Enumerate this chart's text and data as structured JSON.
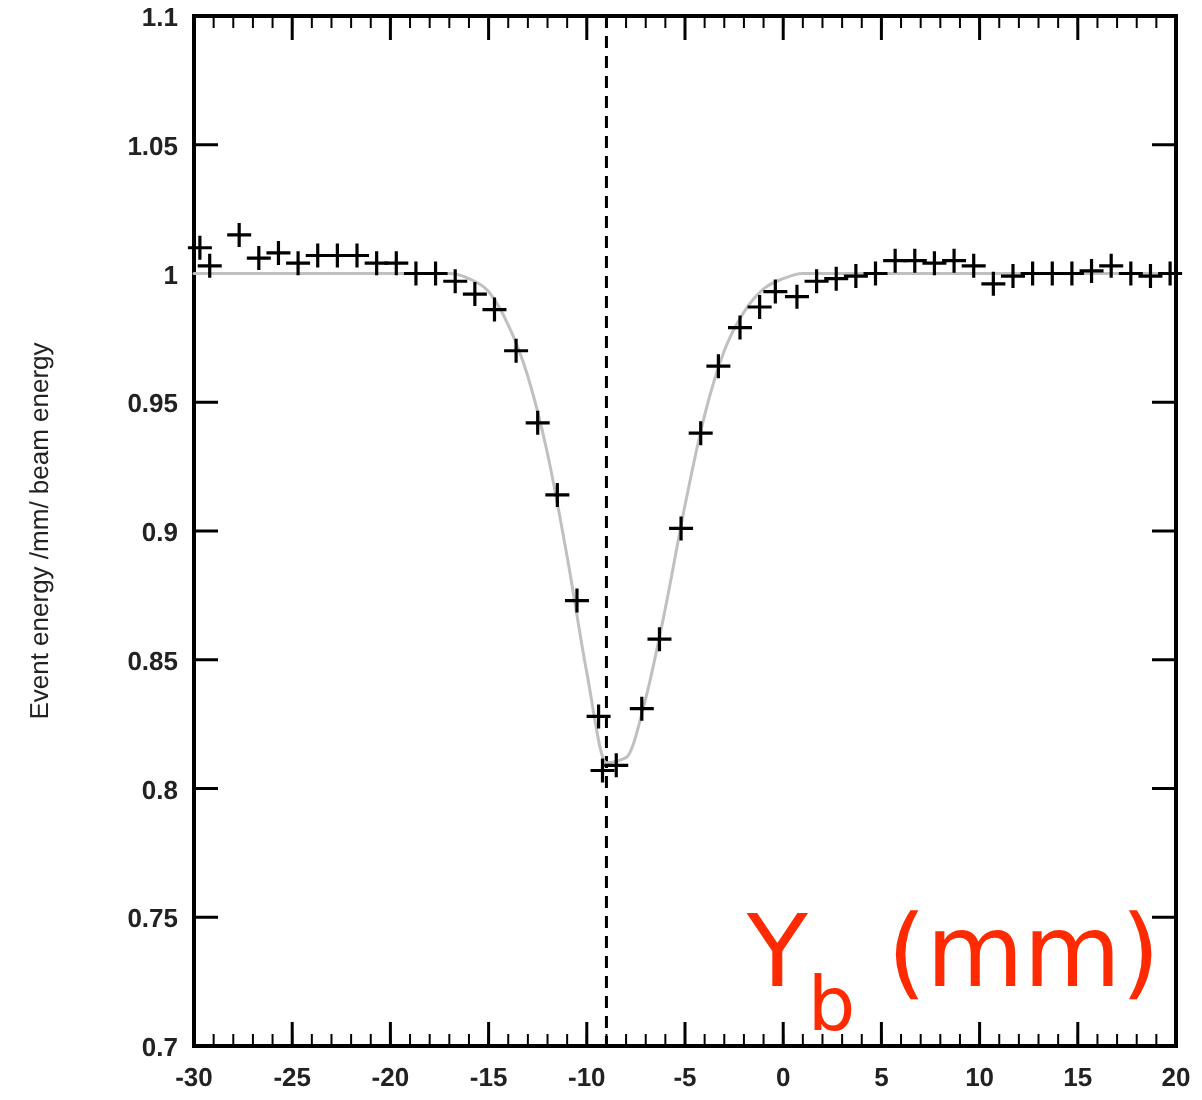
{
  "chart_data": {
    "type": "scatter",
    "xlabel": "Y$_{b}$ (mm)",
    "ylabel": "Event energy /mm/ beam energy",
    "xlim": [
      -30,
      20
    ],
    "ylim": [
      0.7,
      1.1
    ],
    "xticks": [
      -30,
      -25,
      -20,
      -15,
      -10,
      -5,
      0,
      5,
      10,
      15,
      20
    ],
    "yticks": [
      0.7,
      0.75,
      0.8,
      0.85,
      0.9,
      0.95,
      1,
      1.05,
      1.1
    ],
    "marker": "cross",
    "grid": false,
    "ref_lines": [
      {
        "axis": "x",
        "value": -9,
        "color": "#000000",
        "line_style": "dashed"
      }
    ],
    "series": [
      {
        "type": "line",
        "color": "#c0c0c0",
        "line_style": "solid",
        "marker": "none",
        "x": [
          -30,
          -29,
          -28,
          -27,
          -26,
          -25,
          -24,
          -23,
          -22,
          -21,
          -20,
          -19,
          -18,
          -17,
          -16,
          -15,
          -14,
          -13,
          -12,
          -11,
          -10,
          -9,
          -8,
          -7,
          -6,
          -5,
          -4,
          -3,
          -2,
          -1,
          0,
          1,
          2,
          3,
          4,
          5,
          6,
          7,
          8,
          9,
          10,
          11,
          12,
          13,
          14,
          15,
          16,
          17,
          18,
          19,
          20
        ],
        "values": [
          1,
          1,
          1,
          1,
          1,
          1,
          1,
          1,
          1,
          1,
          1,
          1,
          1,
          1,
          0.998,
          0.993,
          0.98,
          0.96,
          0.93,
          0.89,
          0.845,
          0.81,
          0.812,
          0.835,
          0.87,
          0.91,
          0.945,
          0.97,
          0.985,
          0.994,
          0.998,
          1,
          1,
          1,
          1,
          1,
          1,
          1,
          1,
          1,
          1,
          1,
          1,
          1,
          1,
          1,
          1,
          1,
          1,
          1,
          1
        ]
      },
      {
        "color": "#000000",
        "x": [
          -29.7,
          -29.2,
          -27.7,
          -26.7,
          -25.7,
          -24.7,
          -23.7,
          -22.7,
          -21.7,
          -20.7,
          -19.7,
          -18.7,
          -17.7,
          -16.7,
          -15.7,
          -14.7,
          -13.6,
          -12.5,
          -11.5,
          -10.5,
          -9.4,
          -9.2,
          -8.5,
          -7.2,
          -6.3,
          -5.2,
          -4.2,
          -3.3,
          -2.2,
          -1.2,
          -0.4,
          0.7,
          1.7,
          2.7,
          3.7,
          4.7,
          5.7,
          6.7,
          7.7,
          8.7,
          9.7,
          10.7,
          11.7,
          12.7,
          13.7,
          14.7,
          15.7,
          16.7,
          17.7,
          18.7,
          19.7
        ],
        "values": [
          1.01,
          1.003,
          1.015,
          1.006,
          1.008,
          1.004,
          1.007,
          1.007,
          1.007,
          1.004,
          1.004,
          1,
          1,
          0.997,
          0.992,
          0.986,
          0.97,
          0.942,
          0.914,
          0.873,
          0.828,
          0.807,
          0.809,
          0.831,
          0.858,
          0.901,
          0.938,
          0.964,
          0.979,
          0.987,
          0.993,
          0.991,
          0.997,
          0.998,
          0.999,
          1,
          1.005,
          1.005,
          1.004,
          1.005,
          1.003,
          0.996,
          0.999,
          1,
          1,
          1,
          1.001,
          1.003,
          1,
          0.999,
          1
        ]
      }
    ]
  }
}
